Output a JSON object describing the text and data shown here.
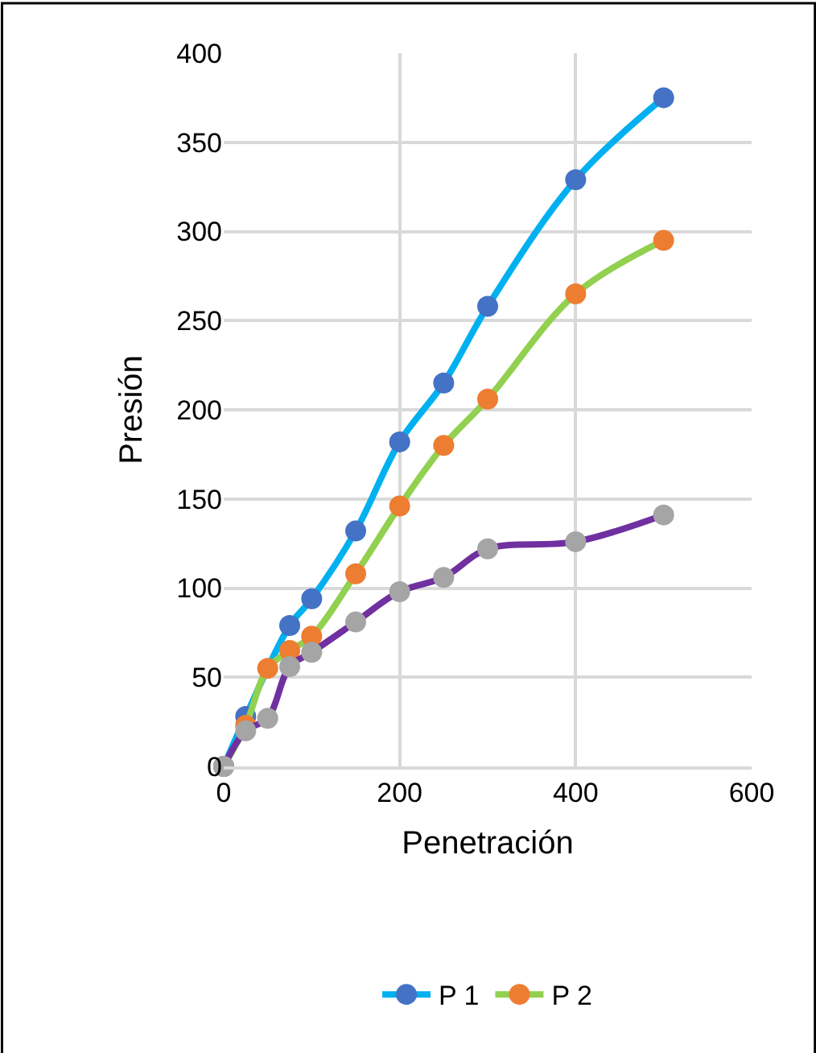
{
  "chart_data": {
    "type": "line",
    "xlabel": "Penetración",
    "ylabel": "Presión",
    "xlim": [
      0,
      600
    ],
    "xticks": [
      0,
      200,
      400,
      600
    ],
    "ylim": [
      0,
      400
    ],
    "yticks": [
      0,
      50,
      100,
      150,
      200,
      250,
      300,
      350,
      400
    ],
    "grid": true,
    "legend": "bottom",
    "marker": "circle",
    "line_style": "solid",
    "series": [
      {
        "name": "P 1",
        "color": "#00b0f0",
        "colors": [
          "#4472c4",
          "#4472c4",
          "#4472c4",
          "#4472c4",
          "#4472c4",
          "#4472c4",
          "#4472c4",
          "#4472c4",
          "#4472c4",
          "#4472c4"
        ],
        "x": [
          0,
          25,
          75,
          100,
          150,
          200,
          250,
          300,
          400,
          500
        ],
        "values": [
          0,
          28,
          79,
          94,
          132,
          182,
          215,
          258,
          329,
          375
        ]
      },
      {
        "name": "P 2",
        "color": "#92d050",
        "colors": [
          "#ed7d31",
          "#ed7d31",
          "#ed7d31",
          "#ed7d31",
          "#ed7d31",
          "#ed7d31",
          "#ed7d31",
          "#ed7d31",
          "#ed7d31",
          "#ed7d31",
          "#ed7d31"
        ],
        "x": [
          0,
          25,
          50,
          75,
          100,
          150,
          200,
          250,
          300,
          400,
          500
        ],
        "values": [
          0,
          23,
          55,
          65,
          73,
          108,
          146,
          180,
          206,
          265,
          295
        ]
      },
      {
        "color": "#7030a0",
        "colors": [
          "#a5a5a5",
          "#a5a5a5",
          "#a5a5a5",
          "#a5a5a5",
          "#a5a5a5",
          "#a5a5a5",
          "#a5a5a5",
          "#a5a5a5",
          "#a5a5a5",
          "#a5a5a5",
          "#a5a5a5"
        ],
        "x": [
          0,
          25,
          50,
          75,
          100,
          150,
          200,
          250,
          300,
          400,
          500
        ],
        "values": [
          0,
          20,
          27,
          56,
          64,
          81,
          98,
          106,
          122,
          126,
          141
        ]
      }
    ]
  }
}
